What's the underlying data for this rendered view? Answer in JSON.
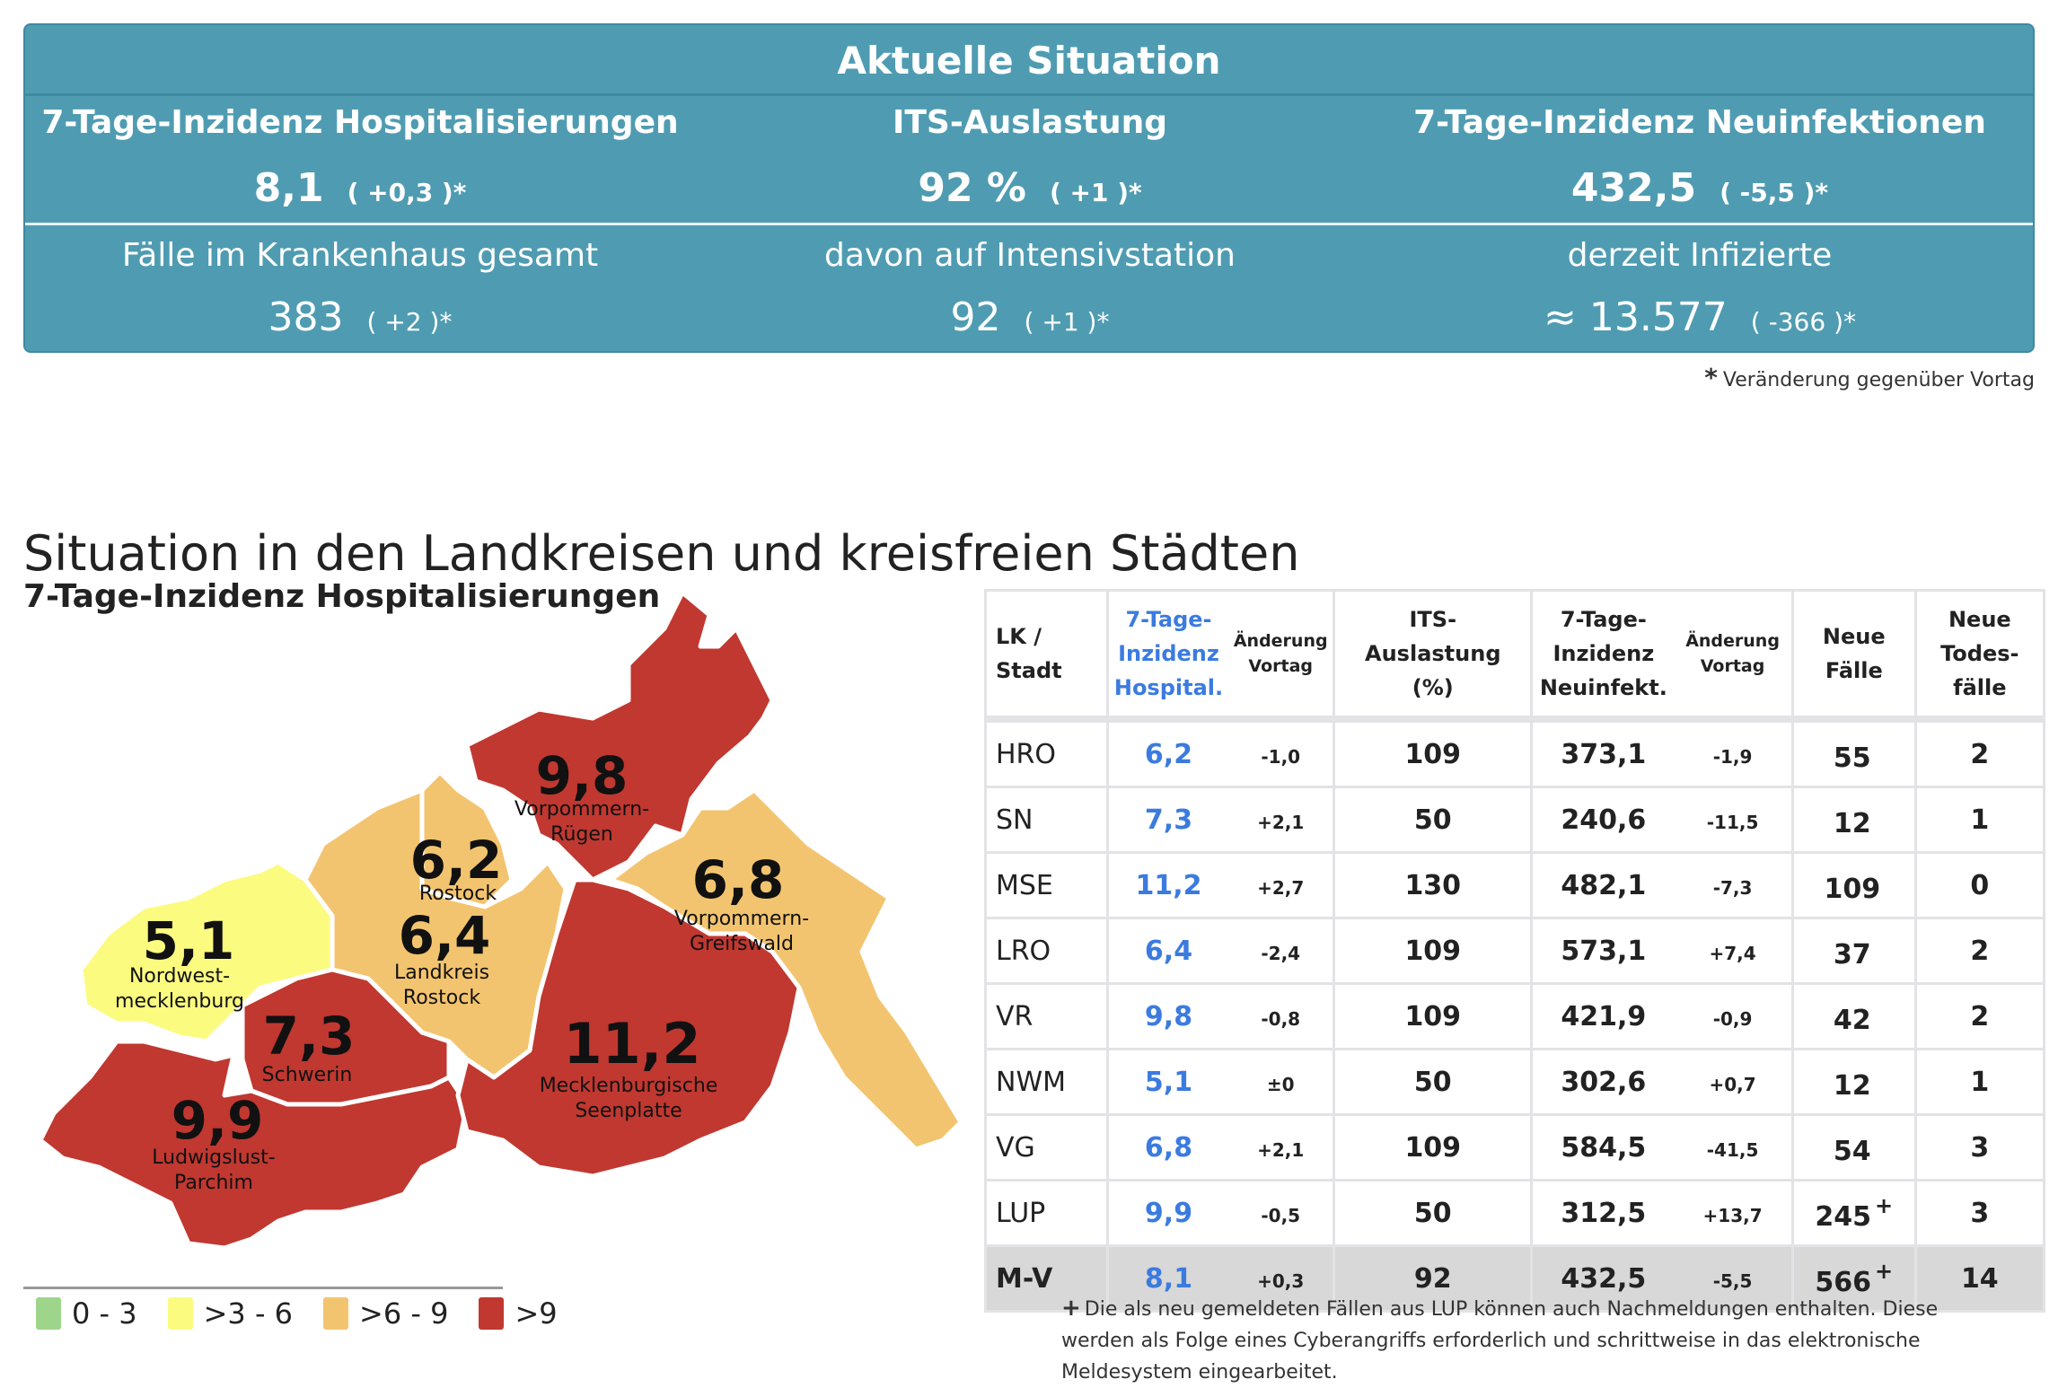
{
  "summary": {
    "title": "Aktuelle Situation",
    "columns": [
      {
        "header": "7-Tage-Inzidenz Hospitalisierungen",
        "value": "8,1",
        "change": "( +0,3 )*",
        "sub_label": "Fälle im Krankenhaus gesamt",
        "sub_value": "383",
        "sub_change": "( +2 )*"
      },
      {
        "header": "ITS-Auslastung",
        "value": "92 %",
        "change": "( +1 )*",
        "sub_label": "davon auf Intensivstation",
        "sub_value": "92",
        "sub_change": "( +1 )*"
      },
      {
        "header": "7-Tage-Inzidenz Neuinfektionen",
        "value": "432,5",
        "change": "( -5,5 )*",
        "sub_label": "derzeit Infizierte",
        "sub_value": "≈ 13.577",
        "sub_change": "( -366 )*"
      }
    ],
    "footnote_symbol": "*",
    "footnote": "Veränderung gegenüber Vortag"
  },
  "section_heading": "Situation in den Landkreisen und kreisfreien Städten",
  "map": {
    "title": "7-Tage-Inzidenz Hospitalisierungen",
    "regions": [
      {
        "name_lines": [
          "Vorpommern-",
          "Rügen"
        ],
        "value": "9,8",
        "class": ">9"
      },
      {
        "name_lines": [
          "Rostock"
        ],
        "value": "6,2",
        "class": ">6 - 9"
      },
      {
        "name_lines": [
          "Landkreis",
          "Rostock"
        ],
        "value": "6,4",
        "class": ">6 - 9"
      },
      {
        "name_lines": [
          "Vorpommern-",
          "Greifswald"
        ],
        "value": "6,8",
        "class": ">6 - 9"
      },
      {
        "name_lines": [
          "Nordwest-",
          "mecklenburg"
        ],
        "value": "5,1",
        "class": ">3 - 6"
      },
      {
        "name_lines": [
          "Schwerin"
        ],
        "value": "7,3",
        "class": ">6 - 9"
      },
      {
        "name_lines": [
          "Mecklenburgische",
          "Seenplatte"
        ],
        "value": "11,2",
        "class": ">9"
      },
      {
        "name_lines": [
          "Ludwigslust-",
          "Parchim"
        ],
        "value": "9,9",
        "class": ">9"
      }
    ],
    "legend": [
      {
        "label": "0 - 3",
        "color": "#9ed58a"
      },
      {
        "label": ">3 - 6",
        "color": "#fbfb80"
      },
      {
        "label": ">6 - 9",
        "color": "#f3c46f"
      },
      {
        "label": ">9",
        "color": "#c03830"
      }
    ]
  },
  "table": {
    "headers": {
      "lk": [
        "LK /",
        "Stadt"
      ],
      "hosp": [
        "7-Tage-",
        "Inzidenz",
        "Hospital."
      ],
      "hosp_change": [
        "Änderung",
        "Vortag"
      ],
      "its": [
        "ITS-",
        "Auslastung",
        "(%)"
      ],
      "inf": [
        "7-Tage-",
        "Inzidenz",
        "Neuinfekt."
      ],
      "inf_change": [
        "Änderung",
        "Vortag"
      ],
      "cases": [
        "Neue",
        "Fälle"
      ],
      "deaths": [
        "Neue",
        "Todes-",
        "fälle"
      ]
    },
    "rows": [
      {
        "lk": "HRO",
        "hosp": "6,2",
        "hosp_change": "-1,0",
        "its": "109",
        "inf": "373,1",
        "inf_change": "-1,9",
        "cases": "55",
        "cases_mark": "",
        "deaths": "2"
      },
      {
        "lk": "SN",
        "hosp": "7,3",
        "hosp_change": "+2,1",
        "its": "50",
        "inf": "240,6",
        "inf_change": "-11,5",
        "cases": "12",
        "cases_mark": "",
        "deaths": "1"
      },
      {
        "lk": "MSE",
        "hosp": "11,2",
        "hosp_change": "+2,7",
        "its": "130",
        "inf": "482,1",
        "inf_change": "-7,3",
        "cases": "109",
        "cases_mark": "",
        "deaths": "0"
      },
      {
        "lk": "LRO",
        "hosp": "6,4",
        "hosp_change": "-2,4",
        "its": "109",
        "inf": "573,1",
        "inf_change": "+7,4",
        "cases": "37",
        "cases_mark": "",
        "deaths": "2"
      },
      {
        "lk": "VR",
        "hosp": "9,8",
        "hosp_change": "-0,8",
        "its": "109",
        "inf": "421,9",
        "inf_change": "-0,9",
        "cases": "42",
        "cases_mark": "",
        "deaths": "2"
      },
      {
        "lk": "NWM",
        "hosp": "5,1",
        "hosp_change": "±0",
        "its": "50",
        "inf": "302,6",
        "inf_change": "+0,7",
        "cases": "12",
        "cases_mark": "",
        "deaths": "1"
      },
      {
        "lk": "VG",
        "hosp": "6,8",
        "hosp_change": "+2,1",
        "its": "109",
        "inf": "584,5",
        "inf_change": "-41,5",
        "cases": "54",
        "cases_mark": "",
        "deaths": "3"
      },
      {
        "lk": "LUP",
        "hosp": "9,9",
        "hosp_change": "-0,5",
        "its": "50",
        "inf": "312,5",
        "inf_change": "+13,7",
        "cases": "245",
        "cases_mark": "+",
        "deaths": "3"
      }
    ],
    "total": {
      "lk": "M-V",
      "hosp": "8,1",
      "hosp_change": "+0,3",
      "its": "92",
      "inf": "432,5",
      "inf_change": "-5,5",
      "cases": "566",
      "cases_mark": "+",
      "deaths": "14"
    },
    "footnote_symbol": "+",
    "footnote": "Die als neu gemeldeten Fällen aus LUP können auch Nachmeldungen enthalten. Diese werden als Folge eines Cyberangriffs erforderlich und schrittweise in das elektronische Meldesystem eingearbeitet."
  },
  "colors": {
    "panel": "#4f9cb2",
    "accent_blue": "#3b7be0",
    "total_row": "#d8d8d8"
  }
}
